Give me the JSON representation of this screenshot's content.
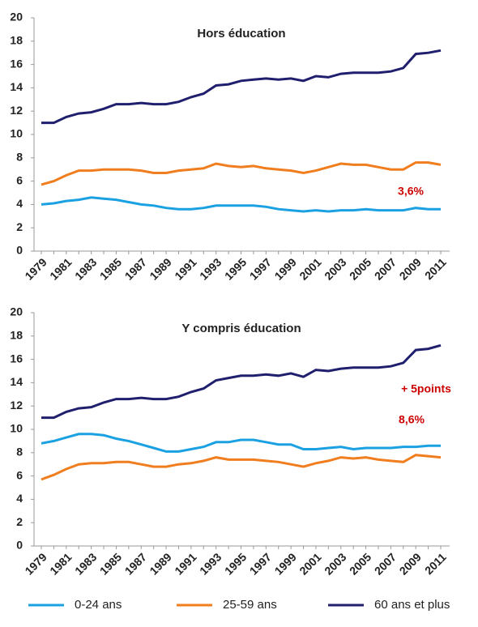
{
  "chart_data": [
    {
      "type": "line",
      "title": "Hors éducation",
      "categories": [
        "1979",
        null,
        "1981",
        null,
        "1983",
        null,
        "1985",
        null,
        "1987",
        null,
        "1989",
        null,
        "1991",
        null,
        "1993",
        null,
        "1995",
        null,
        "1997",
        null,
        "1999",
        null,
        "2001",
        null,
        "2003",
        null,
        "2005",
        null,
        "2007",
        null,
        "2009",
        null,
        "2011"
      ],
      "ylim": [
        0,
        20
      ],
      "yticks": [
        0,
        2,
        4,
        6,
        8,
        10,
        12,
        14,
        16,
        18,
        20
      ],
      "series": [
        {
          "name": "0-24 ans",
          "color": "#1ba1e2",
          "values": [
            4.0,
            4.1,
            4.3,
            4.4,
            4.6,
            4.5,
            4.4,
            4.2,
            4.0,
            3.9,
            3.7,
            3.6,
            3.6,
            3.7,
            3.9,
            3.9,
            3.9,
            3.9,
            3.8,
            3.6,
            3.5,
            3.4,
            3.5,
            3.4,
            3.5,
            3.5,
            3.6,
            3.5,
            3.5,
            3.5,
            3.7,
            3.6,
            3.6
          ]
        },
        {
          "name": "25-59 ans",
          "color": "#f07d1e",
          "values": [
            5.7,
            6.0,
            6.5,
            6.9,
            6.9,
            7.0,
            7.0,
            7.0,
            6.9,
            6.7,
            6.7,
            6.9,
            7.0,
            7.1,
            7.5,
            7.3,
            7.2,
            7.3,
            7.1,
            7.0,
            6.9,
            6.7,
            6.9,
            7.2,
            7.5,
            7.4,
            7.4,
            7.2,
            7.0,
            7.0,
            7.6,
            7.6,
            7.4
          ]
        },
        {
          "name": "60 ans et plus",
          "color": "#1f1f6e",
          "values": [
            11.0,
            11.0,
            11.5,
            11.8,
            11.9,
            12.2,
            12.6,
            12.6,
            12.7,
            12.6,
            12.6,
            12.8,
            13.2,
            13.5,
            14.2,
            14.3,
            14.6,
            14.7,
            14.8,
            14.7,
            14.8,
            14.6,
            15.0,
            14.9,
            15.2,
            15.3,
            15.3,
            15.3,
            15.4,
            15.7,
            16.9,
            17.0,
            17.2
          ]
        }
      ],
      "annotations": [
        "3,6%"
      ]
    },
    {
      "type": "line",
      "title": "Y compris éducation",
      "categories": [
        "1979",
        null,
        "1981",
        null,
        "1983",
        null,
        "1985",
        null,
        "1987",
        null,
        "1989",
        null,
        "1991",
        null,
        "1993",
        null,
        "1995",
        null,
        "1997",
        null,
        "1999",
        null,
        "2001",
        null,
        "2003",
        null,
        "2005",
        null,
        "2007",
        null,
        "2009",
        null,
        "2011"
      ],
      "ylim": [
        0,
        20
      ],
      "yticks": [
        0,
        2,
        4,
        6,
        8,
        10,
        12,
        14,
        16,
        18,
        20
      ],
      "series": [
        {
          "color": "#1ba1e2",
          "values": [
            8.8,
            9.0,
            9.3,
            9.6,
            9.6,
            9.5,
            9.2,
            9.0,
            8.7,
            8.4,
            8.1,
            8.1,
            8.3,
            8.5,
            8.9,
            8.9,
            9.1,
            9.1,
            8.9,
            8.7,
            8.7,
            8.3,
            8.3,
            8.4,
            8.5,
            8.3,
            8.4,
            8.4,
            8.4,
            8.5,
            8.5,
            8.6,
            8.6
          ]
        },
        {
          "color": "#f07d1e",
          "values": [
            5.7,
            6.1,
            6.6,
            7.0,
            7.1,
            7.1,
            7.2,
            7.2,
            7.0,
            6.8,
            6.8,
            7.0,
            7.1,
            7.3,
            7.6,
            7.4,
            7.4,
            7.4,
            7.3,
            7.2,
            7.0,
            6.8,
            7.1,
            7.3,
            7.6,
            7.5,
            7.6,
            7.4,
            7.3,
            7.2,
            7.8,
            7.7,
            7.6
          ]
        },
        {
          "color": "#1f1f6e",
          "values": [
            11.0,
            11.0,
            11.5,
            11.8,
            11.9,
            12.3,
            12.6,
            12.6,
            12.7,
            12.6,
            12.6,
            12.8,
            13.2,
            13.5,
            14.2,
            14.4,
            14.6,
            14.6,
            14.7,
            14.6,
            14.8,
            14.5,
            15.1,
            15.0,
            15.2,
            15.3,
            15.3,
            15.3,
            15.4,
            15.7,
            16.8,
            16.9,
            17.2
          ]
        }
      ],
      "annotations": [
        "+ 5points",
        "8,6%"
      ]
    }
  ]
}
